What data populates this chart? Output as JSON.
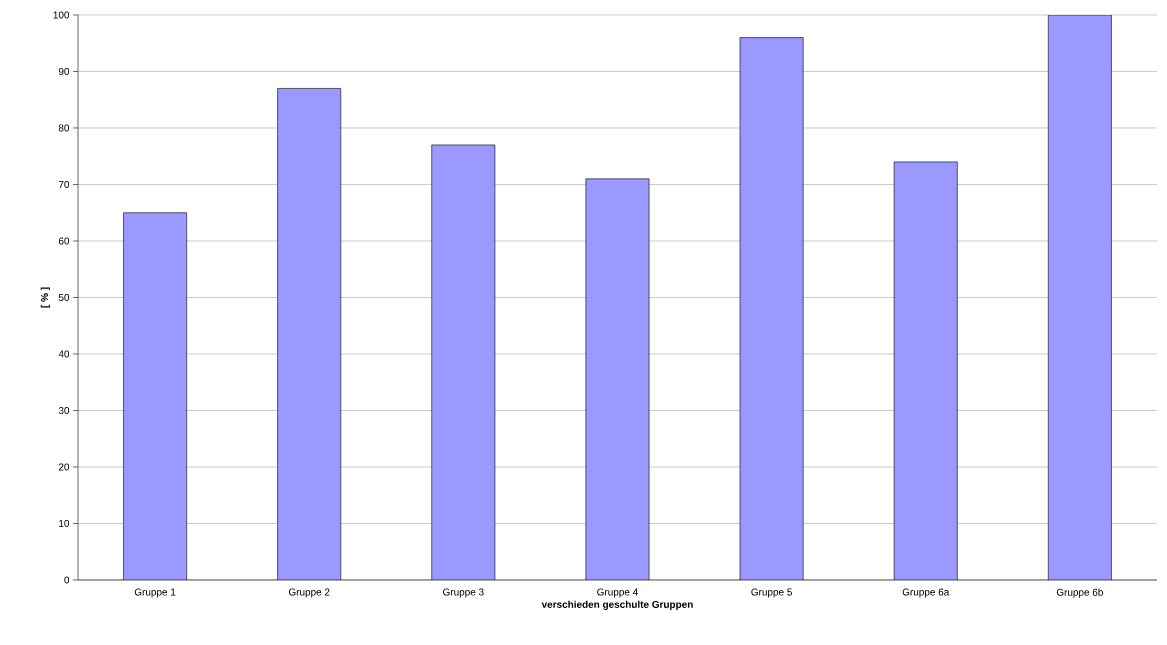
{
  "chart_data": {
    "type": "bar",
    "xlabel": "verschieden geschulte Gruppen",
    "ylabel": "[ % ]",
    "categories": [
      "Gruppe 1",
      "Gruppe 2",
      "Gruppe 3",
      "Gruppe 4",
      "Gruppe 5",
      "Gruppe 6a",
      "Gruppe 6b"
    ],
    "values": [
      65,
      87,
      77,
      71,
      96,
      74,
      100
    ],
    "color": "#9999ff",
    "ylim": [
      0,
      100
    ],
    "yticks": [
      0,
      10,
      20,
      30,
      40,
      50,
      60,
      70,
      80,
      90,
      100
    ],
    "grid": "y"
  }
}
